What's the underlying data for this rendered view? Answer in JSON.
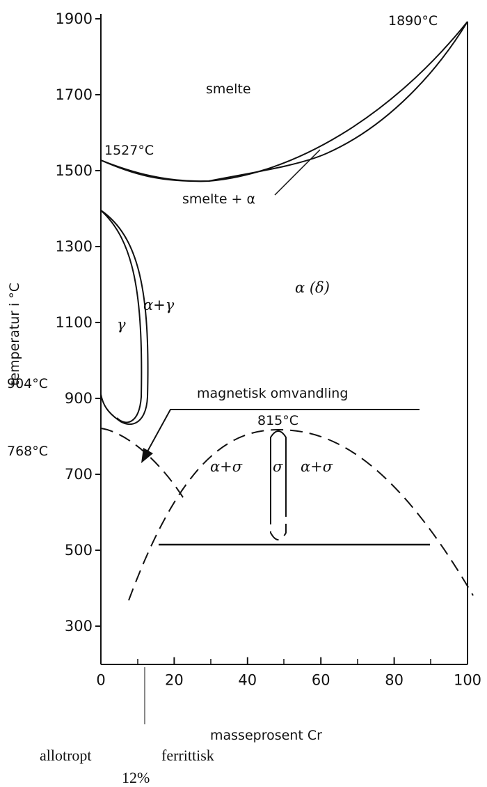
{
  "axes": {
    "xlabel": "masseprosent Cr",
    "ylabel": "temperatur i °C",
    "xlim": [
      0,
      100
    ],
    "ylim": [
      200,
      1900
    ],
    "xticks": [
      0,
      20,
      40,
      60,
      80,
      100
    ],
    "yticks": [
      300,
      500,
      700,
      900,
      1100,
      1300,
      1500,
      1700,
      1900
    ]
  },
  "annotations": {
    "t1527": "1527°C",
    "t1890": "1890°C",
    "smelte": "smelte",
    "smelte_alpha": "smelte + α",
    "alpha_delta": "α (δ)",
    "gamma": "γ",
    "alpha_gamma": "α+γ",
    "t904": "904°C",
    "t768": "768°C",
    "magnetic": "magnetisk omvandling",
    "t815": "815°C",
    "alpha_sigma_left": "α+σ",
    "sigma": "σ",
    "alpha_sigma_right": "α+σ"
  },
  "footer": {
    "left": "allotropt",
    "right": "ferrittisk",
    "percent": "12%"
  }
}
